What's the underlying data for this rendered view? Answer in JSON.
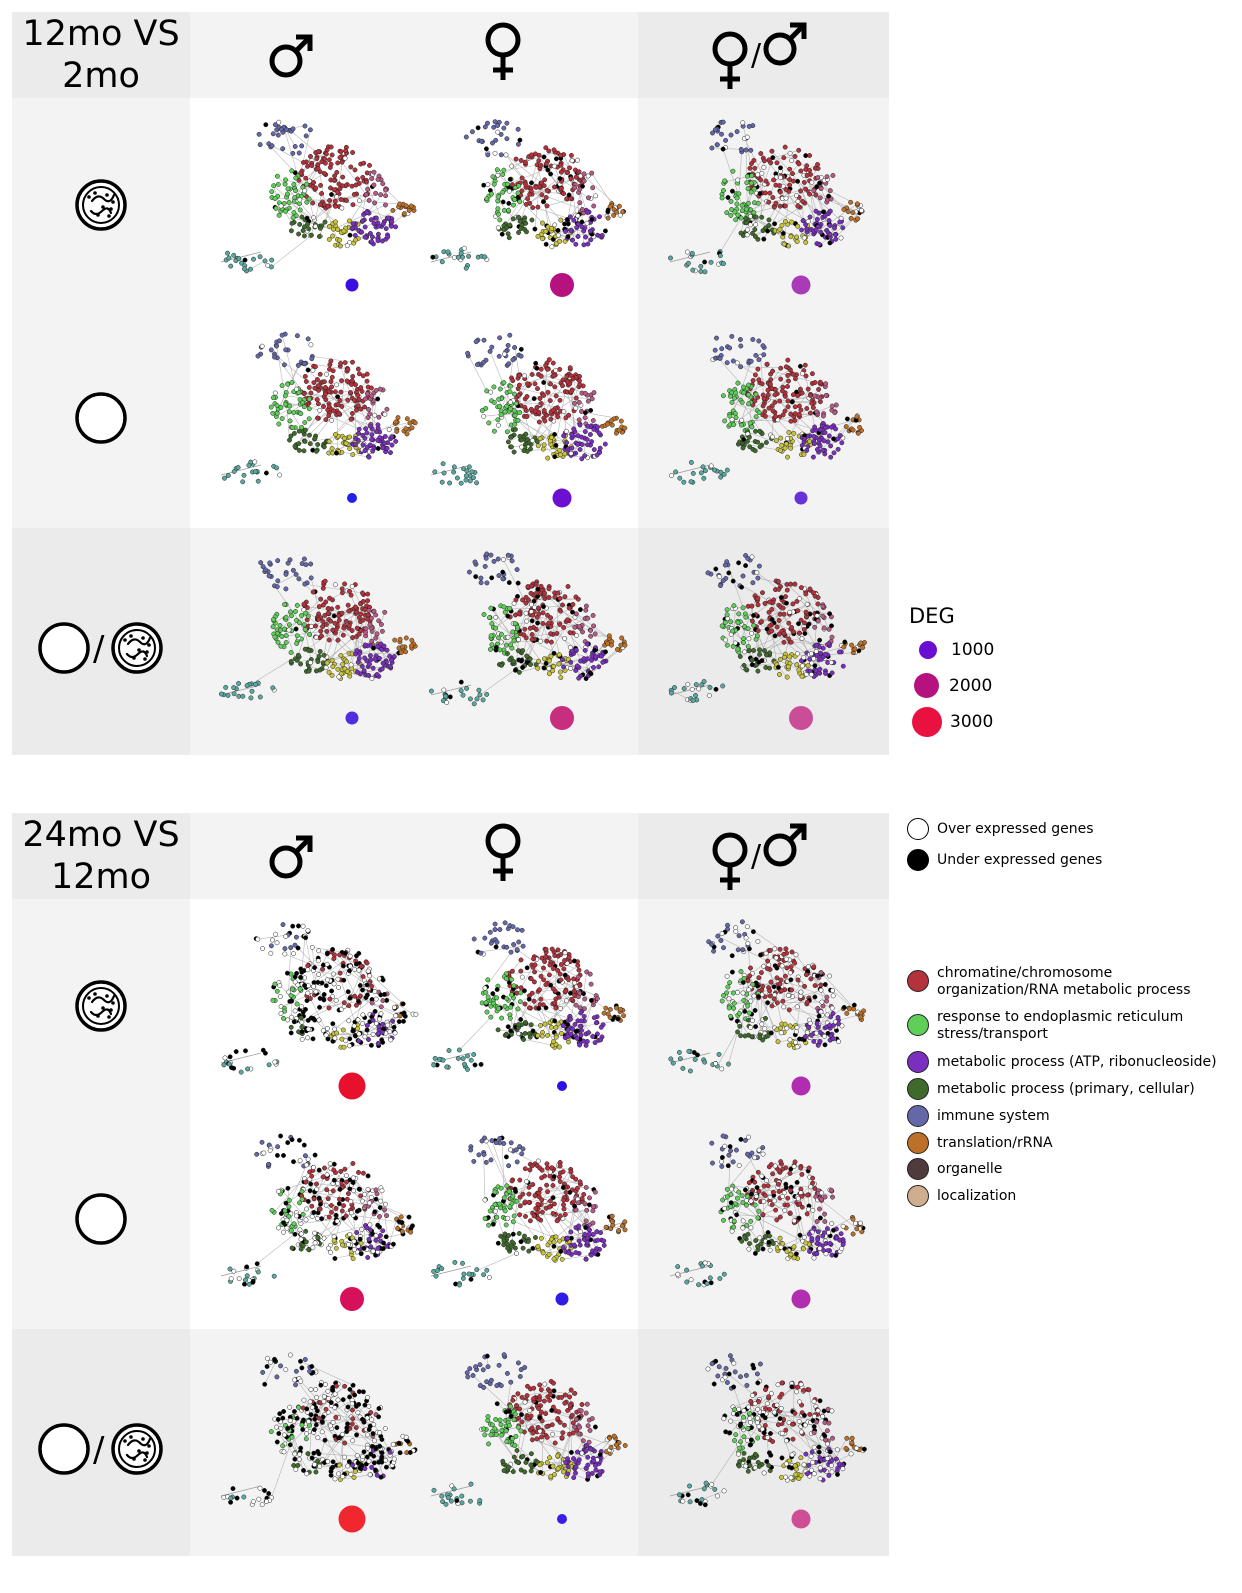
{
  "panels": [
    {
      "title": "12mo VS 2mo",
      "title_lines": [
        "12mo VS",
        "2mo"
      ],
      "columns": [
        {
          "label": "♂",
          "kind": "male"
        },
        {
          "label": "♀",
          "kind": "female"
        },
        {
          "label": "♀/♂",
          "kind": "female-male"
        }
      ],
      "rows": [
        {
          "kind": "germfree-microbiota",
          "cells": [
            {
              "deg_color": "#3b0de0",
              "size_class": "small",
              "under": 0.02,
              "over": 0.05
            },
            {
              "deg_color": "#b5127f",
              "size_class": "large",
              "under": 0.18,
              "over": 0.12
            },
            {
              "deg_color": "#a93bb6",
              "size_class": "medium",
              "under": 0.08,
              "over": 0.14
            }
          ]
        },
        {
          "kind": "conventional",
          "cells": [
            {
              "deg_color": "#2020e8",
              "size_class": "tiny",
              "under": 0.02,
              "over": 0.04
            },
            {
              "deg_color": "#6c0fd0",
              "size_class": "medium",
              "under": 0.03,
              "over": 0.05
            },
            {
              "deg_color": "#6733d9",
              "size_class": "small",
              "under": 0.03,
              "over": 0.06
            }
          ]
        },
        {
          "kind": "ratio",
          "cells": [
            {
              "deg_color": "#4f2ee2",
              "size_class": "small",
              "under": 0.02,
              "over": 0.05
            },
            {
              "deg_color": "#c72f7e",
              "size_class": "large",
              "under": 0.14,
              "over": 0.08
            },
            {
              "deg_color": "#c94e97",
              "size_class": "large",
              "under": 0.12,
              "over": 0.16
            }
          ]
        }
      ]
    },
    {
      "title": "24mo VS 12mo",
      "title_lines": [
        "24mo VS",
        "12mo"
      ],
      "columns": [
        {
          "label": "♂",
          "kind": "male"
        },
        {
          "label": "♀",
          "kind": "female"
        },
        {
          "label": "♀/♂",
          "kind": "female-male"
        }
      ],
      "rows": [
        {
          "kind": "germfree-microbiota",
          "cells": [
            {
              "deg_color": "#e8112d",
              "size_class": "xlarge",
              "under": 0.35,
              "over": 0.35
            },
            {
              "deg_color": "#2b11e3",
              "size_class": "tiny",
              "under": 0.15,
              "over": 0.05
            },
            {
              "deg_color": "#b02cb0",
              "size_class": "medium",
              "under": 0.12,
              "over": 0.25
            }
          ]
        },
        {
          "kind": "conventional",
          "cells": [
            {
              "deg_color": "#d6105a",
              "size_class": "large",
              "under": 0.3,
              "over": 0.3
            },
            {
              "deg_color": "#2f1ce6",
              "size_class": "small",
              "under": 0.1,
              "over": 0.05
            },
            {
              "deg_color": "#b12fae",
              "size_class": "medium",
              "under": 0.12,
              "over": 0.25
            }
          ]
        },
        {
          "kind": "ratio",
          "cells": [
            {
              "deg_color": "#f0272f",
              "size_class": "xlarge",
              "under": 0.4,
              "over": 0.35
            },
            {
              "deg_color": "#3a1de6",
              "size_class": "tiny",
              "under": 0.05,
              "over": 0.06
            },
            {
              "deg_color": "#cf4f96",
              "size_class": "medium",
              "under": 0.2,
              "over": 0.3
            }
          ]
        }
      ]
    }
  ],
  "legend": {
    "deg_title": "DEG",
    "deg_items": [
      {
        "label": "1000",
        "color": "#6a0fd2",
        "size_class": "small"
      },
      {
        "label": "2000",
        "color": "#b5127f",
        "size_class": "medium"
      },
      {
        "label": "3000",
        "color": "#e8113f",
        "size_class": "large"
      }
    ],
    "expression": [
      {
        "label": "Over expressed genes",
        "color": "#ffffff"
      },
      {
        "label": "Under expressed genes",
        "color": "#000000"
      }
    ],
    "modules": [
      {
        "label": "chromatine/chromosome organization/RNA metabolic process",
        "lines": [
          "chromatine/chromosome",
          "organization/RNA metabolic process"
        ],
        "color": "#b3323b"
      },
      {
        "label": "response to endoplasmic reticulum stress/transport",
        "lines": [
          "response to endoplasmic reticulum",
          "stress/transport"
        ],
        "color": "#5fcf5a"
      },
      {
        "label": "metabolic process (ATP, ribonucleoside)",
        "lines": [
          "metabolic process (ATP, ribonucleoside)"
        ],
        "color": "#7a2fbe"
      },
      {
        "label": "metabolic process (primary, cellular)",
        "lines": [
          "metabolic process (primary, cellular)"
        ],
        "color": "#3f6a2c"
      },
      {
        "label": "immune system",
        "lines": [
          "immune system"
        ],
        "color": "#6468a8"
      },
      {
        "label": "translation/rRNA",
        "lines": [
          "translation/rRNA"
        ],
        "color": "#bd7128"
      },
      {
        "label": "organelle",
        "lines": [
          "organelle"
        ],
        "color": "#4f3b3b"
      },
      {
        "label": "localization",
        "lines": [
          "localization"
        ],
        "color": "#cfae8f"
      }
    ]
  },
  "network_colors": {
    "chromatin": "#b3323b",
    "pink": "#b55b86",
    "green": "#5fcf5a",
    "darkgreen": "#3f6a2c",
    "yellow": "#c9c43a",
    "purple": "#7a2fbe",
    "orange": "#bd7128",
    "immune": "#6468a8",
    "teal": "#59a9a0",
    "edge": "#9a9a9a"
  }
}
